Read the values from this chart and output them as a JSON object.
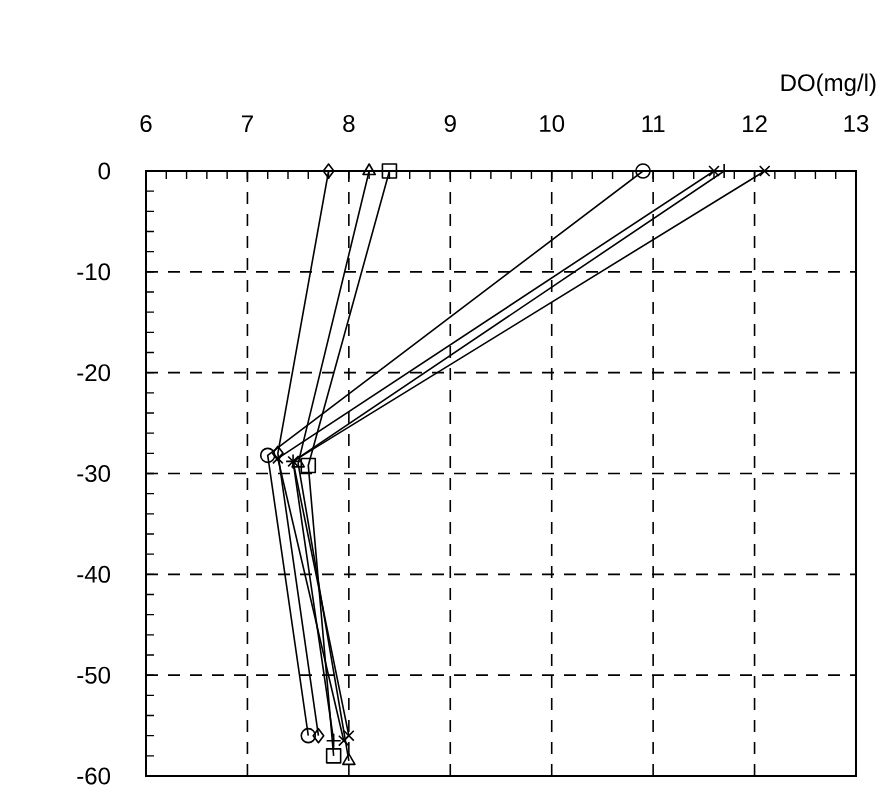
{
  "chart_data": {
    "type": "line",
    "xlabel": "DO(mg/l)",
    "xlim": [
      6,
      13
    ],
    "xticks": [
      6,
      7,
      8,
      9,
      10,
      11,
      12,
      13
    ],
    "ylim": [
      -60,
      0
    ],
    "yticks": [
      -60,
      -50,
      -40,
      -30,
      -20,
      -10,
      0
    ],
    "grid": true,
    "series": [
      {
        "color": "#000000",
        "marker": "diamond",
        "x": [
          7.8,
          7.3,
          7.7
        ],
        "values": [
          0,
          -28,
          -56
        ]
      },
      {
        "color": "#000000",
        "marker": "triangle",
        "x": [
          8.2,
          7.5,
          8.0
        ],
        "values": [
          0,
          -29,
          -58.5
        ]
      },
      {
        "color": "#000000",
        "marker": "square",
        "x": [
          8.4,
          7.6,
          7.85
        ],
        "values": [
          0,
          -29.2,
          -58
        ]
      },
      {
        "color": "#000000",
        "marker": "circle",
        "x": [
          10.9,
          7.2,
          7.6
        ],
        "values": [
          0,
          -28.2,
          -56
        ]
      },
      {
        "color": "#000000",
        "marker": "cross",
        "x": [
          11.6,
          7.3,
          7.95
        ],
        "values": [
          0,
          -28.5,
          -56.5
        ]
      },
      {
        "color": "#000000",
        "marker": "plus",
        "x": [
          11.7,
          7.45,
          7.85
        ],
        "values": [
          0,
          -28.8,
          -56.5
        ]
      },
      {
        "color": "#000000",
        "marker": "cross",
        "x": [
          12.1,
          7.45,
          8.0
        ],
        "values": [
          0,
          -28.8,
          -56
        ]
      }
    ]
  }
}
